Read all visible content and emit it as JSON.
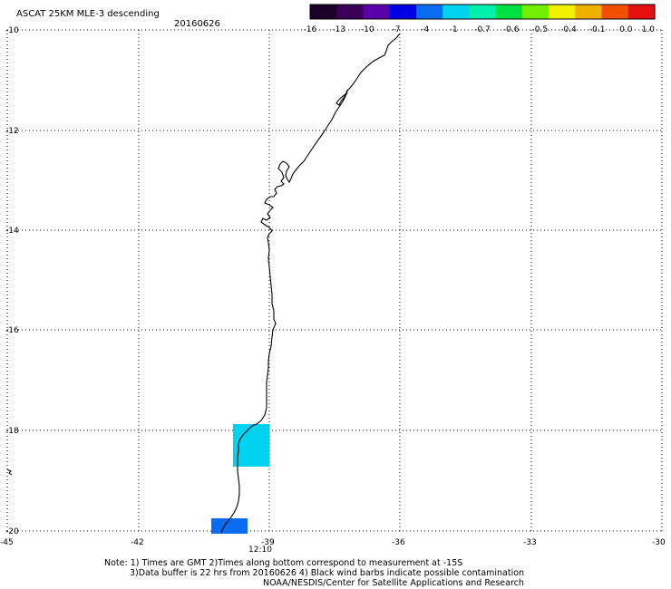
{
  "header": {
    "title": "ASCAT 25KM MLE-3 descending",
    "date": "20160626"
  },
  "colorbar": {
    "labels": [
      "-16",
      "-13",
      "-10",
      "-7",
      "-4",
      "-1",
      "-0.7",
      "-0.6",
      "-0.5",
      "-0.4",
      "-0.1",
      "0.0",
      "1.0"
    ],
    "colors": [
      "#1a0026",
      "#3a0058",
      "#5a00a8",
      "#0000e6",
      "#0a6cf0",
      "#00d2f0",
      "#00f0b0",
      "#00e040",
      "#70f000",
      "#f0f000",
      "#f0b000",
      "#f05000",
      "#e61010"
    ]
  },
  "map": {
    "lat_labels": [
      "-10",
      "-12",
      "-14",
      "-16",
      "-18",
      "-20"
    ],
    "lon_labels": [
      "-45",
      "-42",
      "-39",
      "-36",
      "-33",
      "-30"
    ],
    "time_label": "12:10",
    "time_color": "#cc2200",
    "swath_colors": [
      "#00d2f0",
      "#0a6cf0"
    ]
  },
  "notes": {
    "line1": "Note: 1) Times are GMT 2)Times along bottom correspond to measurement at -15S",
    "line2": "3)Data buffer is 22 hrs from 20160626 4) Black wind barbs indicate possible contamination",
    "line3": "NOAA/NESDIS/Center for Satellite Applications and Research"
  }
}
